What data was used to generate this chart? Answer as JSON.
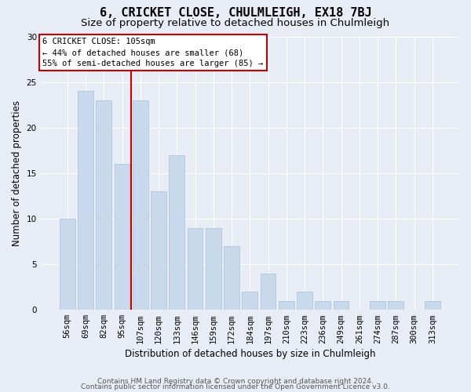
{
  "title": "6, CRICKET CLOSE, CHULMLEIGH, EX18 7BJ",
  "subtitle": "Size of property relative to detached houses in Chulmleigh",
  "xlabel": "Distribution of detached houses by size in Chulmleigh",
  "ylabel": "Number of detached properties",
  "categories": [
    "56sqm",
    "69sqm",
    "82sqm",
    "95sqm",
    "107sqm",
    "120sqm",
    "133sqm",
    "146sqm",
    "159sqm",
    "172sqm",
    "184sqm",
    "197sqm",
    "210sqm",
    "223sqm",
    "236sqm",
    "249sqm",
    "261sqm",
    "274sqm",
    "287sqm",
    "300sqm",
    "313sqm"
  ],
  "values": [
    10,
    24,
    23,
    16,
    23,
    13,
    17,
    9,
    9,
    7,
    2,
    4,
    1,
    2,
    1,
    1,
    0,
    1,
    1,
    0,
    1
  ],
  "bar_color": "#c8d9ec",
  "bar_edge_color": "#a8c0d8",
  "highlight_color": "#cc0000",
  "ylim": [
    0,
    30
  ],
  "yticks": [
    0,
    5,
    10,
    15,
    20,
    25,
    30
  ],
  "annotation_title": "6 CRICKET CLOSE: 105sqm",
  "annotation_line1": "← 44% of detached houses are smaller (68)",
  "annotation_line2": "55% of semi-detached houses are larger (85) →",
  "footer1": "Contains HM Land Registry data © Crown copyright and database right 2024.",
  "footer2": "Contains public sector information licensed under the Open Government Licence v3.0.",
  "background_color": "#e8edf5",
  "title_fontsize": 11,
  "subtitle_fontsize": 9.5,
  "axis_label_fontsize": 8.5,
  "tick_fontsize": 7.5,
  "annotation_fontsize": 7.5,
  "footer_fontsize": 6.5
}
